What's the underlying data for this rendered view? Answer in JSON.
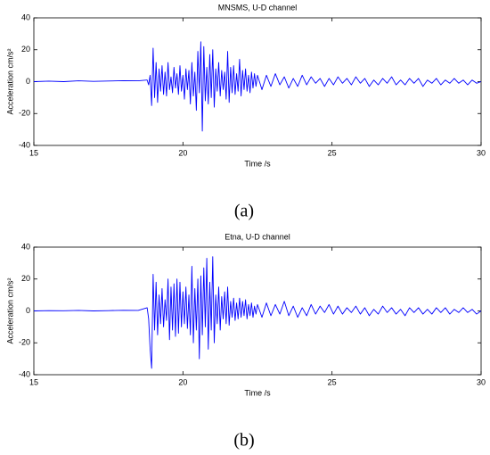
{
  "chart_data": [
    {
      "type": "line",
      "title": "MNSMS, U-D channel",
      "xlabel": "Time /s",
      "ylabel": "Acceleration cm/s²",
      "caption": "(a)",
      "xlim": [
        15,
        30
      ],
      "ylim": [
        -40,
        40
      ],
      "xticks": [
        15,
        20,
        25,
        30
      ],
      "yticks": [
        -40,
        -20,
        0,
        20,
        40
      ],
      "x": [
        15,
        15.5,
        16,
        16.5,
        17,
        17.5,
        18,
        18.5,
        18.8,
        18.85,
        18.9,
        18.95,
        19,
        19.05,
        19.1,
        19.15,
        19.2,
        19.25,
        19.3,
        19.35,
        19.4,
        19.45,
        19.5,
        19.55,
        19.6,
        19.65,
        19.7,
        19.75,
        19.8,
        19.85,
        19.9,
        19.95,
        20,
        20.05,
        20.1,
        20.15,
        20.2,
        20.25,
        20.3,
        20.35,
        20.4,
        20.45,
        20.5,
        20.55,
        20.6,
        20.65,
        20.7,
        20.75,
        20.8,
        20.85,
        20.9,
        20.95,
        21,
        21.05,
        21.1,
        21.15,
        21.2,
        21.25,
        21.3,
        21.35,
        21.4,
        21.45,
        21.5,
        21.55,
        21.6,
        21.65,
        21.7,
        21.75,
        21.8,
        21.85,
        21.9,
        21.95,
        22,
        22.05,
        22.1,
        22.15,
        22.2,
        22.25,
        22.3,
        22.35,
        22.4,
        22.45,
        22.5,
        22.65,
        22.8,
        22.95,
        23.1,
        23.25,
        23.4,
        23.55,
        23.7,
        23.85,
        24,
        24.15,
        24.3,
        24.45,
        24.6,
        24.75,
        24.9,
        25.05,
        25.2,
        25.35,
        25.5,
        25.65,
        25.8,
        25.95,
        26.1,
        26.25,
        26.4,
        26.55,
        26.7,
        26.85,
        27,
        27.15,
        27.3,
        27.45,
        27.6,
        27.75,
        27.9,
        28.05,
        28.2,
        28.35,
        28.5,
        28.65,
        28.8,
        28.95,
        29.1,
        29.25,
        29.4,
        29.55,
        29.7,
        29.85,
        30
      ],
      "series": [
        {
          "color": "#0000ff",
          "values": [
            0,
            0.3,
            0,
            0.5,
            0.2,
            0.4,
            0.6,
            0.5,
            1,
            -2,
            4,
            -15,
            21,
            -10,
            12,
            -13,
            8,
            -6,
            10,
            -8,
            6,
            -9,
            12,
            -5,
            3,
            -7,
            9,
            -4,
            5,
            -8,
            10,
            -6,
            4,
            -11,
            8,
            -5,
            7,
            -14,
            12,
            -9,
            6,
            -18,
            19,
            -7,
            25,
            -31,
            22,
            -12,
            9,
            -14,
            17,
            -10,
            20,
            -16,
            8,
            -6,
            12,
            -9,
            7,
            -5,
            6,
            -11,
            19,
            -13,
            9,
            -7,
            10,
            -8,
            5,
            -6,
            14,
            -9,
            7,
            -5,
            8,
            -6,
            4,
            -7,
            6,
            -4,
            5,
            -3,
            4,
            -5,
            4,
            -3,
            5,
            -2,
            3,
            -4,
            2,
            -3,
            4,
            -2,
            3,
            -1,
            2,
            -3,
            2,
            -2,
            3,
            -1,
            2,
            -2,
            3,
            -1,
            2,
            -3,
            1,
            -2,
            2,
            -1,
            3,
            -2,
            1,
            -2,
            2,
            -1,
            2,
            -3,
            1,
            -1,
            2,
            -2,
            1,
            -1,
            2,
            -1,
            1,
            -2,
            1,
            -1,
            0
          ]
        }
      ]
    },
    {
      "type": "line",
      "title": "Etna, U-D channel",
      "xlabel": "Time /s",
      "ylabel": "Acceleration cm/s²",
      "caption": "(b)",
      "xlim": [
        15,
        30
      ],
      "ylim": [
        -40,
        40
      ],
      "xticks": [
        15,
        20,
        25,
        30
      ],
      "yticks": [
        -40,
        -20,
        0,
        20,
        40
      ],
      "x": [
        15,
        15.5,
        16,
        16.5,
        17,
        17.5,
        18,
        18.5,
        18.8,
        18.85,
        18.9,
        18.95,
        19,
        19.05,
        19.1,
        19.15,
        19.2,
        19.25,
        19.3,
        19.35,
        19.4,
        19.45,
        19.5,
        19.55,
        19.6,
        19.65,
        19.7,
        19.75,
        19.8,
        19.85,
        19.9,
        19.95,
        20,
        20.05,
        20.1,
        20.15,
        20.2,
        20.25,
        20.3,
        20.35,
        20.4,
        20.45,
        20.5,
        20.55,
        20.6,
        20.65,
        20.7,
        20.75,
        20.8,
        20.85,
        20.9,
        20.95,
        21,
        21.05,
        21.1,
        21.15,
        21.2,
        21.25,
        21.3,
        21.35,
        21.4,
        21.45,
        21.5,
        21.55,
        21.6,
        21.65,
        21.7,
        21.75,
        21.8,
        21.85,
        21.9,
        21.95,
        22,
        22.05,
        22.1,
        22.15,
        22.2,
        22.25,
        22.3,
        22.35,
        22.4,
        22.45,
        22.5,
        22.65,
        22.8,
        22.95,
        23.1,
        23.25,
        23.4,
        23.55,
        23.7,
        23.85,
        24,
        24.15,
        24.3,
        24.45,
        24.6,
        24.75,
        24.9,
        25.05,
        25.2,
        25.35,
        25.5,
        25.65,
        25.8,
        25.95,
        26.1,
        26.25,
        26.4,
        26.55,
        26.7,
        26.85,
        27,
        27.15,
        27.3,
        27.45,
        27.6,
        27.75,
        27.9,
        28.05,
        28.2,
        28.35,
        28.5,
        28.65,
        28.8,
        28.95,
        29.1,
        29.25,
        29.4,
        29.55,
        29.7,
        29.85,
        30
      ],
      "series": [
        {
          "color": "#0000ff",
          "values": [
            0,
            0.2,
            0.1,
            0.3,
            0,
            0.2,
            0.4,
            0.3,
            2,
            -5,
            -24,
            -36,
            23,
            -12,
            18,
            -15,
            10,
            -8,
            14,
            -10,
            7,
            -6,
            20,
            -18,
            15,
            -12,
            17,
            -16,
            20,
            -14,
            18,
            -10,
            12,
            -8,
            15,
            -11,
            10,
            -15,
            28,
            -20,
            14,
            -12,
            20,
            -30,
            22,
            -15,
            27,
            -10,
            33,
            -24,
            18,
            -12,
            34,
            -20,
            10,
            -8,
            15,
            -12,
            9,
            -5,
            12,
            -8,
            15,
            -9,
            6,
            -4,
            8,
            -6,
            5,
            -5,
            8,
            -4,
            6,
            -3,
            7,
            -5,
            4,
            -3,
            5,
            -4,
            3,
            -2,
            4,
            -4,
            5,
            -3,
            4,
            -2,
            6,
            -3,
            3,
            -4,
            2,
            -3,
            4,
            -2,
            3,
            -1,
            4,
            -2,
            3,
            -2,
            2,
            -1,
            3,
            -2,
            2,
            -3,
            1,
            -2,
            3,
            -1,
            2,
            -2,
            1,
            -3,
            2,
            -1,
            2,
            -2,
            1,
            -2,
            2,
            -1,
            2,
            -2,
            1,
            -1,
            2,
            -1,
            1,
            -2,
            0
          ]
        }
      ]
    }
  ]
}
